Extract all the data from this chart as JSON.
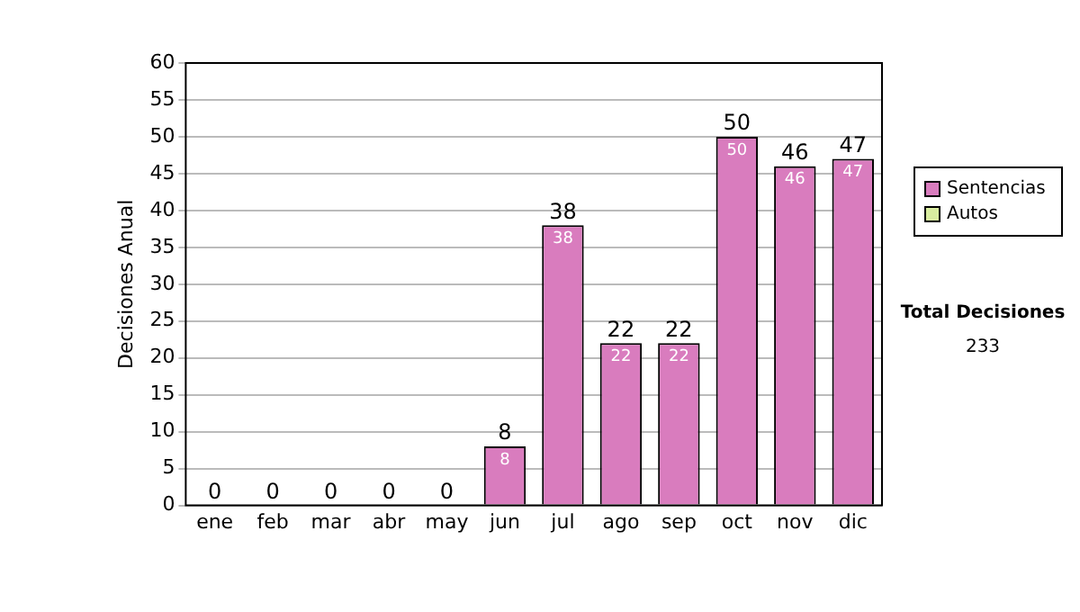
{
  "chart_data": {
    "type": "bar",
    "ylabel": "Decisiones Anual",
    "categories": [
      "ene",
      "feb",
      "mar",
      "abr",
      "may",
      "jun",
      "jul",
      "ago",
      "sep",
      "oct",
      "nov",
      "dic"
    ],
    "stacked": true,
    "series": [
      {
        "name": "Sentencias",
        "color": "#d97cbe",
        "values": [
          0,
          0,
          0,
          0,
          0,
          8,
          38,
          22,
          22,
          50,
          46,
          47
        ],
        "value_labels": [
          null,
          null,
          null,
          null,
          null,
          "8",
          "38",
          "22",
          "22",
          "50",
          "46",
          "47"
        ]
      },
      {
        "name": "Autos",
        "color": "#d9eda0",
        "values": [
          0,
          0,
          0,
          0,
          0,
          0,
          0,
          0,
          0,
          0,
          0,
          0
        ]
      }
    ],
    "totals": [
      "0",
      "0",
      "0",
      "0",
      "0",
      "8",
      "38",
      "22",
      "22",
      "50",
      "46",
      "47"
    ],
    "ylim": [
      0,
      60
    ],
    "yticks": [
      0,
      5,
      10,
      15,
      20,
      25,
      30,
      35,
      40,
      45,
      50,
      55,
      60
    ],
    "grid": "y",
    "legend": "right",
    "annotations": [
      "Total Decisiones",
      "233"
    ]
  }
}
